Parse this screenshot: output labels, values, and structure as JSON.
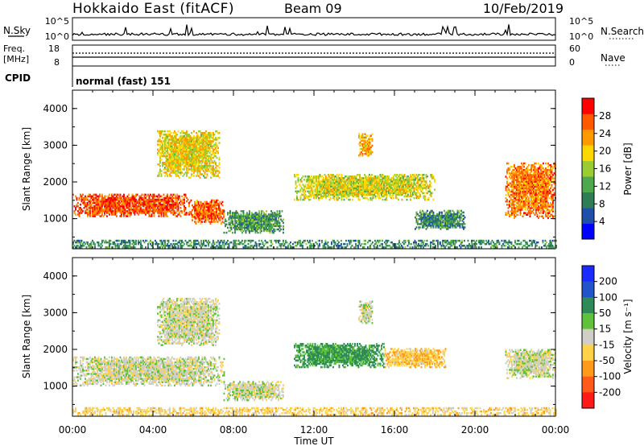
{
  "header": {
    "station": "Hokkaido East (fitACF)",
    "beam": "Beam 09",
    "date": "10/Feb/2019"
  },
  "summary_panels": {
    "nsky_label": "N.Sky",
    "nsky_ticks": [
      "10^5",
      "10^0"
    ],
    "nsearch_label": "N.Search",
    "nsearch_ticks": [
      "10^5",
      "10^0"
    ],
    "freq_label": "Freq.",
    "freq_unit": "[MHz]",
    "freq_ticks": [
      "18",
      "8"
    ],
    "nave_label": "Nave",
    "nave_ticks": [
      "60",
      "0"
    ],
    "cpid_label": "CPID",
    "cpid_value": "normal (fast) 151"
  },
  "x_axis": {
    "label": "Time UT",
    "ticks": [
      "00:00",
      "04:00",
      "08:00",
      "12:00",
      "16:00",
      "20:00",
      "00:00"
    ],
    "range_hours": [
      0,
      24
    ]
  },
  "colors": {
    "power_scale": [
      "#0000ff",
      "#1f4fa8",
      "#2e7d55",
      "#4ea84e",
      "#9acd32",
      "#ffd700",
      "#ff9900",
      "#ff5a00",
      "#ff0000"
    ],
    "velocity_scale": [
      "#1a2bff",
      "#2255cc",
      "#2e8b57",
      "#5fc23a",
      "#cfcfc8",
      "#ffd24a",
      "#ff9a1a",
      "#ff5a1a",
      "#ff1a1a"
    ]
  },
  "chart_data": [
    {
      "type": "heatmap",
      "title": "",
      "ylabel": "Slant Range [km]",
      "xlabel": "",
      "xlim": [
        0,
        24
      ],
      "ylim": [
        180,
        4500
      ],
      "yticks": [
        "1000",
        "2000",
        "3000",
        "4000"
      ],
      "colorbar": {
        "label": "Power [dB]",
        "ticks": [
          "4",
          "8",
          "12",
          "16",
          "20",
          "24",
          "28"
        ],
        "range": [
          0,
          32
        ]
      },
      "regions": [
        {
          "t0": 0.0,
          "t1": 5.8,
          "r0": 1050,
          "r1": 1650,
          "value": 27
        },
        {
          "t0": 5.8,
          "t1": 7.5,
          "r0": 850,
          "r1": 1500,
          "value": 26
        },
        {
          "t0": 4.2,
          "t1": 7.3,
          "r0": 2100,
          "r1": 3400,
          "value": 19
        },
        {
          "t0": 7.5,
          "t1": 10.5,
          "r0": 600,
          "r1": 1200,
          "value": 11
        },
        {
          "t0": 11.0,
          "t1": 18.0,
          "r0": 1500,
          "r1": 2200,
          "value": 18
        },
        {
          "t0": 14.2,
          "t1": 14.9,
          "r0": 2700,
          "r1": 3300,
          "value": 22
        },
        {
          "t0": 17.0,
          "t1": 19.5,
          "r0": 700,
          "r1": 1200,
          "value": 10
        },
        {
          "t0": 21.5,
          "t1": 24.0,
          "r0": 1000,
          "r1": 2500,
          "value": 25
        },
        {
          "t0": 0.0,
          "t1": 24.0,
          "r0": 200,
          "r1": 400,
          "value": 10
        }
      ]
    },
    {
      "type": "heatmap",
      "title": "",
      "ylabel": "Slant Range [km]",
      "xlabel": "Time UT",
      "xlim": [
        0,
        24
      ],
      "ylim": [
        180,
        4500
      ],
      "yticks": [
        "1000",
        "2000",
        "3000",
        "4000"
      ],
      "colorbar": {
        "label": "Velocity [m s⁻¹]",
        "ticks": [
          "200",
          "100",
          "50",
          "15",
          "-15",
          "-50",
          "-100",
          "-200"
        ]
      },
      "regions": [
        {
          "t0": 0.0,
          "t1": 7.5,
          "r0": 1000,
          "r1": 1800,
          "value": 0
        },
        {
          "t0": 7.5,
          "t1": 10.5,
          "r0": 600,
          "r1": 1100,
          "value": 0
        },
        {
          "t0": 4.2,
          "t1": 7.3,
          "r0": 2100,
          "r1": 3400,
          "value": 0
        },
        {
          "t0": 11.0,
          "t1": 15.5,
          "r0": 1500,
          "r1": 2150,
          "value": 60
        },
        {
          "t0": 15.5,
          "t1": 18.5,
          "r0": 1500,
          "r1": 2000,
          "value": -40
        },
        {
          "t0": 14.2,
          "t1": 14.9,
          "r0": 2700,
          "r1": 3300,
          "value": 0
        },
        {
          "t0": 21.5,
          "t1": 24.0,
          "r0": 1200,
          "r1": 2000,
          "value": 0
        },
        {
          "t0": 0.0,
          "t1": 24.0,
          "r0": 200,
          "r1": 400,
          "value": -30
        }
      ]
    }
  ]
}
